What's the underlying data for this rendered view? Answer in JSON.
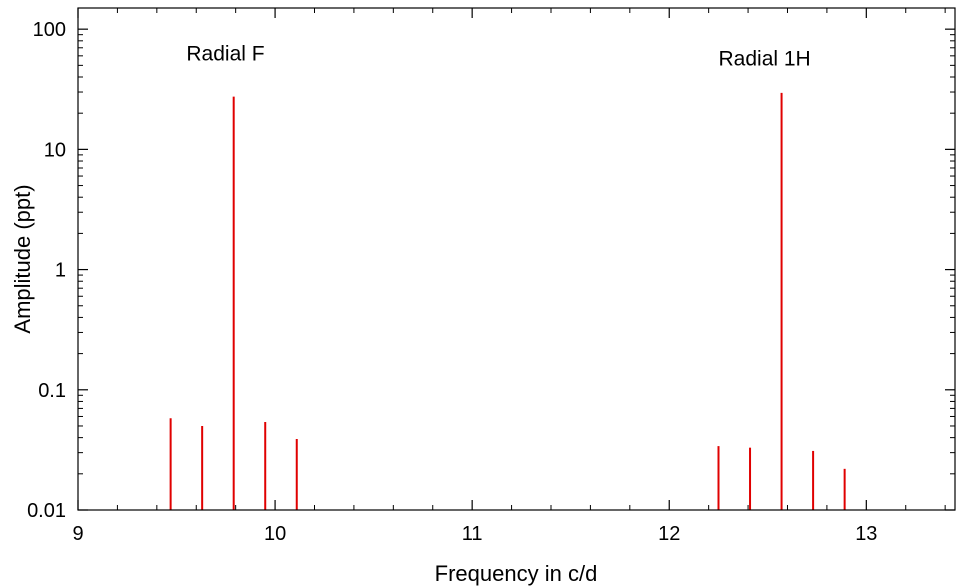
{
  "chart_data": {
    "type": "bar",
    "xlabel": "Frequency in c/d",
    "ylabel": "Amplitude (ppt)",
    "y_scale": "log",
    "xlim": [
      9,
      13.45
    ],
    "ylim": [
      0.01,
      150
    ],
    "grid": false,
    "x_ticks": [
      "9",
      "10",
      "11",
      "12",
      "13"
    ],
    "y_ticks": [
      "0.01",
      "0.1",
      "1",
      "10",
      "100"
    ],
    "line_color": "#e00000",
    "annotations": [
      {
        "text": "Radial F",
        "x": 9.55,
        "y": 55
      },
      {
        "text": "Radial 1H",
        "x": 12.25,
        "y": 50
      }
    ],
    "series": [
      {
        "x": [
          9.47,
          9.63,
          9.79,
          9.95,
          10.11,
          12.25,
          12.41,
          12.57,
          12.73,
          12.89
        ],
        "values": [
          0.058,
          0.05,
          27.5,
          0.054,
          0.039,
          0.034,
          0.033,
          29.5,
          0.031,
          0.022
        ]
      }
    ]
  }
}
